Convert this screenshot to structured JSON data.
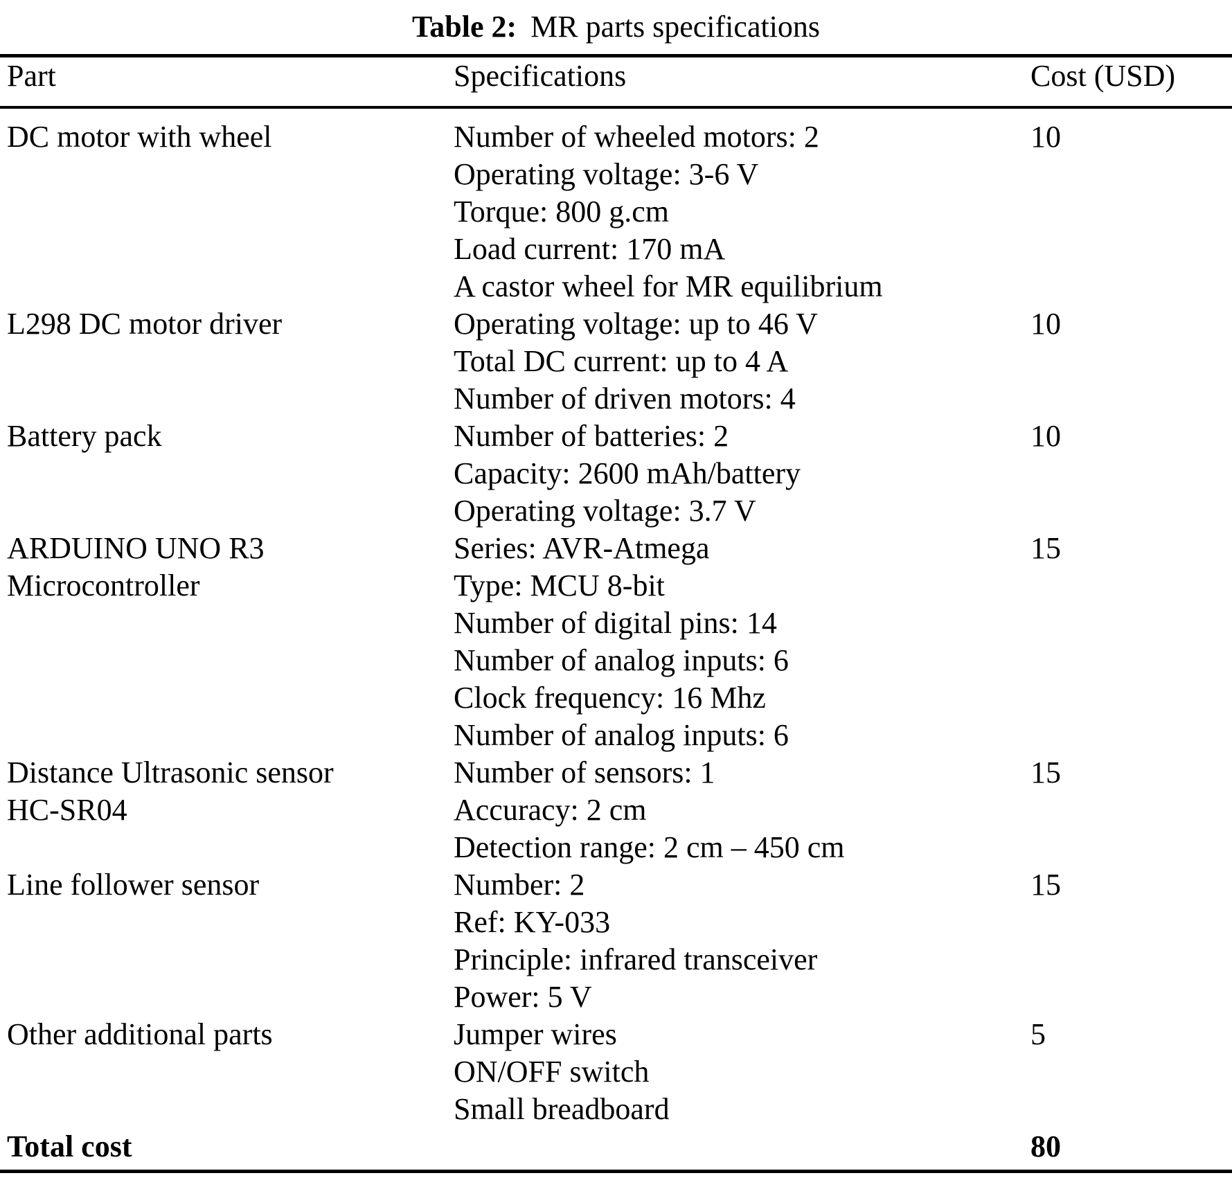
{
  "caption": {
    "label": "Table 2:",
    "text": "MR parts specifications"
  },
  "header": {
    "part": "Part",
    "specifications": "Specifications",
    "cost": "Cost (USD)"
  },
  "rows": [
    {
      "part": [
        "DC motor with wheel"
      ],
      "specs": [
        "Number of wheeled motors: 2",
        "Operating voltage: 3-6 V",
        "Torque: 800 g.cm",
        "Load current: 170 mA",
        "A castor wheel for MR equilibrium"
      ],
      "cost": "10"
    },
    {
      "part": [
        "L298 DC motor driver"
      ],
      "specs": [
        "Operating voltage: up to 46 V",
        "Total DC current: up to 4 A",
        "Number of driven motors: 4"
      ],
      "cost": "10"
    },
    {
      "part": [
        "Battery pack"
      ],
      "specs": [
        "Number of batteries: 2",
        "Capacity: 2600 mAh/battery",
        "Operating voltage: 3.7 V"
      ],
      "cost": "10"
    },
    {
      "part": [
        "ARDUINO UNO R3",
        "Microcontroller"
      ],
      "specs": [
        "Series: AVR-Atmega",
        "Type: MCU 8-bit",
        "Number of digital pins: 14",
        "Number of analog inputs: 6",
        "Clock frequency: 16 Mhz",
        "Number of analog inputs: 6"
      ],
      "cost": "15"
    },
    {
      "part": [
        "Distance Ultrasonic sensor",
        "HC-SR04"
      ],
      "specs": [
        "Number of sensors: 1",
        "Accuracy: 2 cm",
        "Detection range: 2 cm – 450 cm"
      ],
      "cost": "15"
    },
    {
      "part": [
        "Line follower sensor"
      ],
      "specs": [
        "Number: 2",
        "Ref: KY-033",
        "Principle: infrared transceiver",
        "Power: 5 V"
      ],
      "cost": "15"
    },
    {
      "part": [
        "Other additional parts"
      ],
      "specs": [
        "Jumper wires",
        "ON/OFF switch",
        "Small breadboard"
      ],
      "cost": "5"
    },
    {
      "part": [
        "Total cost"
      ],
      "specs": [],
      "cost": "80"
    }
  ],
  "colors": {
    "background": "#ffffff",
    "text": "#000000",
    "rule": "#000000"
  }
}
